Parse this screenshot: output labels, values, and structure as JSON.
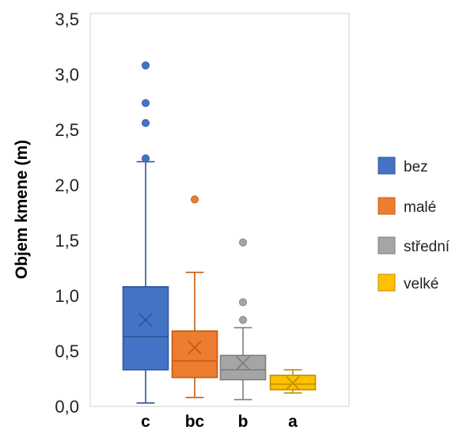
{
  "chart_data": {
    "type": "box",
    "ylabel": "Objem kmene (m)",
    "ylim": [
      0,
      3.5
    ],
    "yticks": [
      "0,0",
      "0,5",
      "1,0",
      "1,5",
      "2,0",
      "2,5",
      "3,0",
      "3,5"
    ],
    "grid": false,
    "legend_position": "right",
    "categories": [
      "c",
      "bc",
      "b",
      "a"
    ],
    "series": [
      {
        "name": "bez",
        "color": "#4472C4",
        "edge": "#2F5597",
        "whisker_low": 0.03,
        "q1": 0.33,
        "median": 0.63,
        "q3": 1.08,
        "whisker_high": 2.21,
        "mean": 0.78,
        "outliers": [
          2.24,
          2.56,
          2.74,
          3.08
        ]
      },
      {
        "name": "malé",
        "color": "#ED7D31",
        "edge": "#C55A11",
        "whisker_low": 0.08,
        "q1": 0.26,
        "median": 0.41,
        "q3": 0.68,
        "whisker_high": 1.21,
        "mean": 0.53,
        "outliers": [
          1.87
        ]
      },
      {
        "name": "střední",
        "color": "#A5A5A5",
        "edge": "#7F7F7F",
        "whisker_low": 0.06,
        "q1": 0.24,
        "median": 0.33,
        "q3": 0.46,
        "whisker_high": 0.71,
        "mean": 0.39,
        "outliers": [
          0.78,
          0.94,
          1.48
        ]
      },
      {
        "name": "velké",
        "color": "#FFC000",
        "edge": "#BF9000",
        "whisker_low": 0.12,
        "q1": 0.15,
        "median": 0.2,
        "q3": 0.28,
        "whisker_high": 0.33,
        "mean": 0.21,
        "outliers": []
      }
    ]
  }
}
